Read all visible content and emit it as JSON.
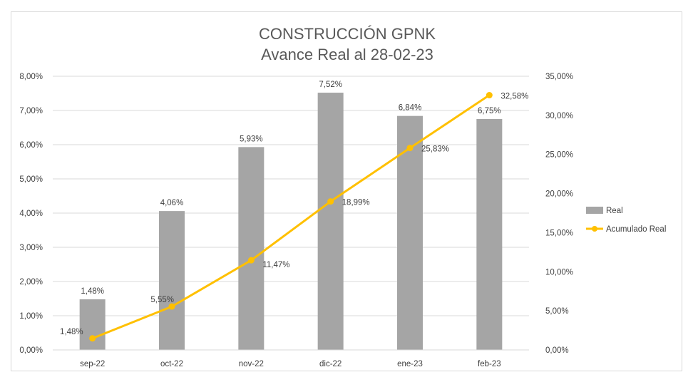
{
  "chart_data": {
    "type": "bar+line",
    "title": "CONSTRUCCIÓN GPNK",
    "subtitle": "Avance Real al 28-02-23",
    "categories": [
      "sep-22",
      "oct-22",
      "nov-22",
      "dic-22",
      "ene-23",
      "feb-23"
    ],
    "series": [
      {
        "name": "Real",
        "kind": "bar",
        "axis": "left",
        "color": "#a5a5a5",
        "values": [
          1.48,
          4.06,
          5.93,
          7.52,
          6.84,
          6.75
        ],
        "labels": [
          "1,48%",
          "4,06%",
          "5,93%",
          "7,52%",
          "6,84%",
          "6,75%"
        ]
      },
      {
        "name": "Acumulado Real",
        "kind": "line",
        "axis": "right",
        "color": "#ffc000",
        "values": [
          1.48,
          5.55,
          11.47,
          18.99,
          25.83,
          32.58
        ],
        "labels": [
          "1,48%",
          "5,55%",
          "11,47%",
          "18,99%",
          "25,83%",
          "32,58%"
        ]
      }
    ],
    "y_left": {
      "ylim": [
        0,
        8
      ],
      "ticks": [
        "0,00%",
        "1,00%",
        "2,00%",
        "3,00%",
        "4,00%",
        "5,00%",
        "6,00%",
        "7,00%",
        "8,00%"
      ]
    },
    "y_right": {
      "ylim": [
        0,
        35
      ],
      "ticks": [
        "0,00%",
        "5,00%",
        "10,00%",
        "15,00%",
        "20,00%",
        "25,00%",
        "30,00%",
        "35,00%"
      ]
    },
    "grid": true,
    "legend": "right"
  }
}
